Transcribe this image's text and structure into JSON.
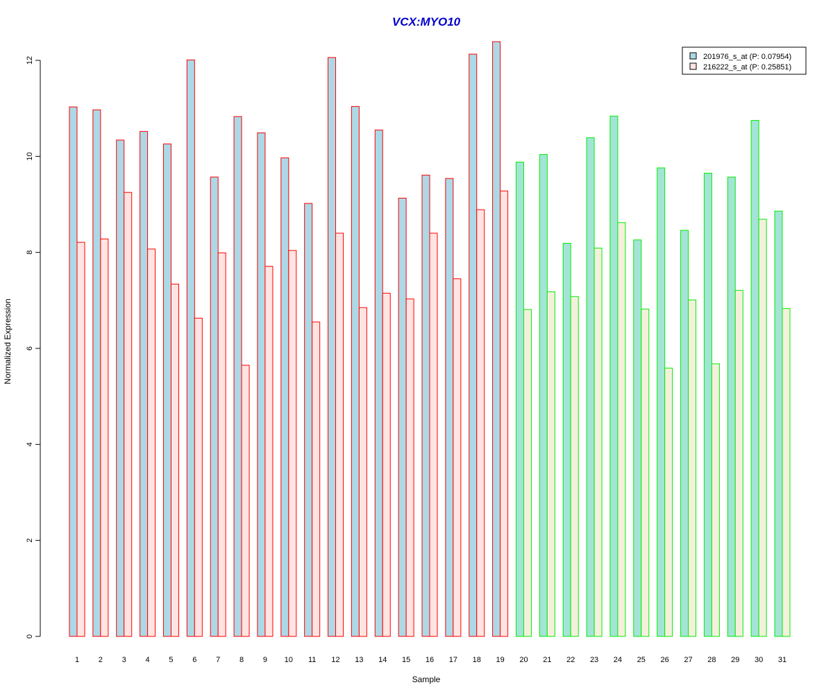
{
  "chart_data": {
    "type": "bar",
    "title": "VCX:MYO10",
    "xlabel": "Sample",
    "ylabel": "Normalized Expression",
    "ylim": [
      0,
      12.5
    ],
    "yticks": [
      "0",
      "2",
      "4",
      "6",
      "8",
      "10",
      "12"
    ],
    "categories": [
      "1",
      "2",
      "3",
      "4",
      "5",
      "6",
      "7",
      "8",
      "9",
      "10",
      "11",
      "12",
      "13",
      "14",
      "15",
      "16",
      "17",
      "18",
      "19",
      "20",
      "21",
      "22",
      "23",
      "24",
      "25",
      "26",
      "27",
      "28",
      "29",
      "30",
      "31"
    ],
    "series": [
      {
        "name": "201976_s_at (P: 0.07954)",
        "values": [
          11.03,
          10.97,
          10.34,
          10.52,
          10.26,
          12.01,
          9.57,
          10.83,
          10.49,
          9.97,
          9.02,
          12.06,
          11.04,
          10.55,
          9.13,
          9.61,
          9.54,
          12.13,
          12.39,
          9.88,
          10.04,
          8.19,
          10.39,
          10.84,
          8.26,
          9.76,
          8.46,
          9.65,
          9.57,
          10.75,
          8.86
        ]
      },
      {
        "name": "216222_s_at (P: 0.25851)",
        "values": [
          8.21,
          8.28,
          9.25,
          8.07,
          7.34,
          6.63,
          7.99,
          5.65,
          7.71,
          8.04,
          6.55,
          8.4,
          6.85,
          7.15,
          7.03,
          8.4,
          7.45,
          8.89,
          9.28,
          6.81,
          7.18,
          7.08,
          8.09,
          8.62,
          6.82,
          5.59,
          7.01,
          5.68,
          7.21,
          8.69,
          6.83
        ]
      }
    ],
    "group_border": {
      "group1": {
        "samples": "1-19",
        "border": "#ff0000",
        "fill_series1": "#add8e6",
        "fill_series2": "#ffe4e1"
      },
      "group2": {
        "samples": "20-31",
        "border": "#00ee00",
        "fill_series1": "#a3e4d7",
        "fill_series2": "#f5f0dc"
      }
    },
    "colors": {
      "title": "#0000cd",
      "legend_series1": "#add8e6",
      "legend_series2": "#ffe4e1"
    },
    "legend_placement": "top-right",
    "grid": false
  }
}
